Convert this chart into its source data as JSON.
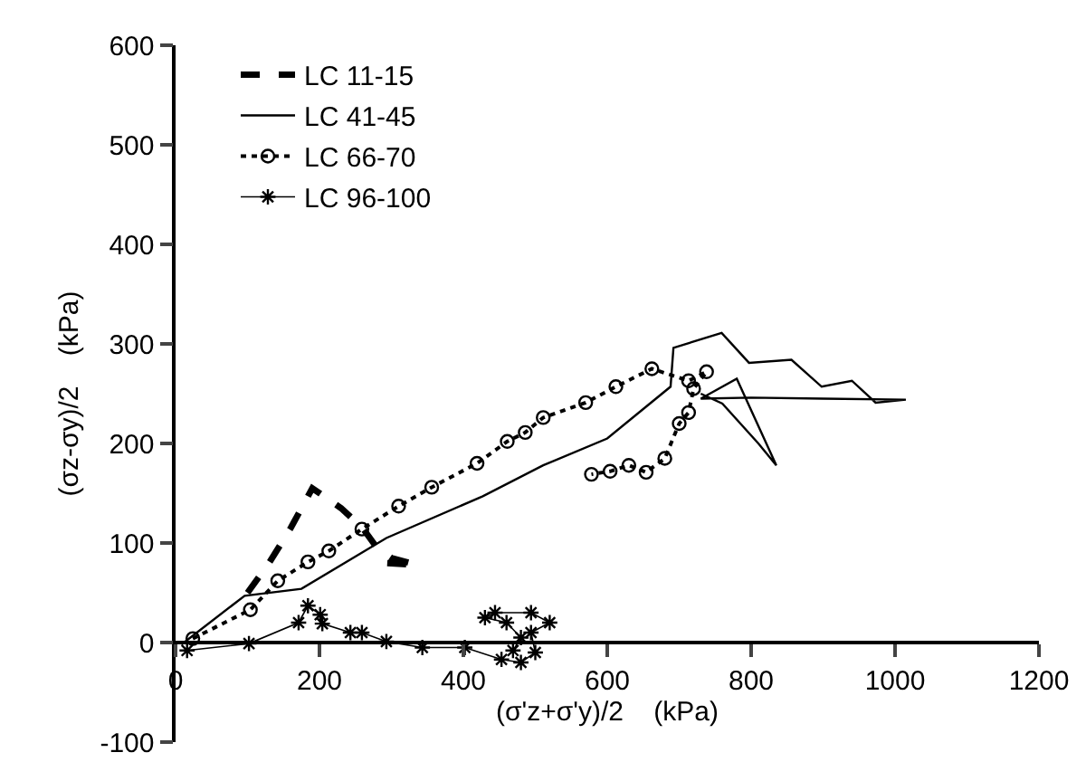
{
  "chart_data": {
    "type": "line",
    "xlabel": "(σ'z+σ'y)/2    (kPa)",
    "ylabel": "(σz-σy)/2    (kPa)",
    "xlim": [
      0,
      1200
    ],
    "xticks": [
      0,
      200,
      400,
      600,
      800,
      1000,
      1200
    ],
    "ylim": [
      -100,
      600
    ],
    "yticks": [
      -100,
      0,
      100,
      200,
      300,
      400,
      500,
      600
    ],
    "legend": "top left",
    "series": [
      {
        "name": "LC 11-15",
        "color": "#000000",
        "line_style": "dashed",
        "marker": "none",
        "x": [
          100,
          130,
          160,
          190,
          230,
          260,
          280,
          300,
          335,
          290
        ],
        "values": [
          50,
          80,
          115,
          155,
          135,
          115,
          95,
          85,
          78,
          80
        ]
      },
      {
        "name": "LC 41-45",
        "color": "#000000",
        "line_style": "solid",
        "marker": "none",
        "x": [
          8,
          96,
          175,
          293,
          427,
          511,
          600,
          688,
          692,
          759,
          797,
          856,
          898,
          940,
          973,
          1015,
          900,
          800,
          730,
          780,
          835,
          810,
          760,
          730
        ],
        "values": [
          -2,
          47,
          54,
          105,
          147,
          178,
          205,
          257,
          296,
          311,
          281,
          284,
          257,
          263,
          241,
          244,
          245,
          246,
          245,
          265,
          178,
          200,
          240,
          250
        ]
      },
      {
        "name": "LC 66-70",
        "color": "#000000",
        "line_style": "dotted",
        "marker": "circle",
        "x": [
          24,
          104,
          142,
          184,
          213,
          259,
          310,
          356,
          419,
          461,
          486,
          511,
          570,
          612,
          662,
          713,
          738,
          720,
          713,
          700,
          680,
          654,
          630,
          604,
          578
        ],
        "values": [
          4,
          33,
          62,
          81,
          92,
          114,
          137,
          156,
          180,
          202,
          211,
          226,
          241,
          257,
          275,
          263,
          272,
          255,
          231,
          220,
          185,
          171,
          178,
          172,
          169
        ]
      },
      {
        "name": "LC 96-100",
        "color": "#000000",
        "line_style": "solid",
        "marker": "cross",
        "x": [
          16,
          102,
          171,
          184,
          201,
          204,
          243,
          259,
          293,
          343,
          402,
          453,
          480,
          500,
          494,
          520,
          494,
          444,
          430,
          460,
          480,
          469
        ],
        "values": [
          -8,
          -1,
          20,
          37,
          28,
          19,
          10,
          10,
          1,
          -5,
          -5,
          -17,
          -20,
          -10,
          10,
          20,
          30,
          30,
          25,
          20,
          5,
          -8
        ]
      }
    ]
  }
}
